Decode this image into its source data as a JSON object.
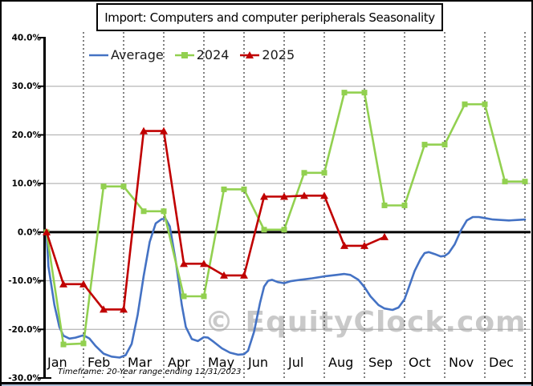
{
  "chart": {
    "title": "Import: Computers and computer peripherals Seasonality"
  },
  "legend": {
    "items": [
      {
        "label": "Average",
        "color": "#4472C4",
        "marker": "none"
      },
      {
        "label": "2024",
        "color": "#92D050",
        "marker": "square"
      },
      {
        "label": "2025",
        "color": "#C00000",
        "marker": "triangle"
      }
    ]
  },
  "watermark": {
    "text": "© EquityClock.com"
  },
  "footnote": {
    "text": "Timeframe: 20-Year range ending 12/31/2023"
  },
  "colors": {
    "average_line": "#4472C4",
    "year2024_line": "#92D050",
    "year2025_line": "#C00000",
    "gridline": "#A6A6A6",
    "axis": "#000000",
    "watermark": "#c9c9c9"
  },
  "chart_data": {
    "type": "line",
    "title": "Import: Computers and computer peripherals Seasonality",
    "xlabel": "",
    "ylabel": "",
    "x_axis": {
      "months": [
        "Jan",
        "Feb",
        "Mar",
        "Apr",
        "May",
        "Jun",
        "Jul",
        "Aug",
        "Sep",
        "Oct",
        "Nov",
        "Dec"
      ],
      "points_per_month": 2
    },
    "y_axis": {
      "range": [
        -30,
        40
      ],
      "tick_labels": [
        "40.0%",
        "30.0%",
        "20.0%",
        "10.0%",
        "0.0%",
        "-10.0%",
        "-20.0%",
        "-30.0%"
      ],
      "tick_values": [
        40,
        30,
        20,
        10,
        0,
        -10,
        -20,
        -30
      ],
      "solid_gridlines": [
        30,
        20,
        10,
        -10,
        -20
      ],
      "zero_line": true,
      "unit": "percent"
    },
    "categories": [
      "Jan 1",
      "Jan 15",
      "Feb 1",
      "Feb 15",
      "Mar 1",
      "Mar 15",
      "Apr 1",
      "Apr 15",
      "May 1",
      "May 15",
      "Jun 1",
      "Jun 15",
      "Jul 1",
      "Jul 15",
      "Aug 1",
      "Aug 15",
      "Sep 1",
      "Sep 15",
      "Oct 1",
      "Oct 15",
      "Nov 1",
      "Nov 15",
      "Dec 1",
      "Dec 15",
      "Dec 31"
    ],
    "series": [
      {
        "name": "Average",
        "color": "#4472C4",
        "marker": "none",
        "style": "smooth",
        "points": [
          [
            0,
            0
          ],
          [
            0.25,
            -7
          ],
          [
            0.55,
            -15
          ],
          [
            0.8,
            -19.5
          ],
          [
            1,
            -21.3
          ],
          [
            1.3,
            -21.9
          ],
          [
            1.6,
            -21.7
          ],
          [
            2,
            -21.2
          ],
          [
            2.3,
            -21.9
          ],
          [
            2.6,
            -23.4
          ],
          [
            3,
            -25
          ],
          [
            3.4,
            -25.6
          ],
          [
            3.8,
            -25.8
          ],
          [
            4.1,
            -25.3
          ],
          [
            4.4,
            -23
          ],
          [
            4.7,
            -17
          ],
          [
            5,
            -9
          ],
          [
            5.3,
            -2
          ],
          [
            5.6,
            1.8
          ],
          [
            5.9,
            2.7
          ],
          [
            6.1,
            2.7
          ],
          [
            6.3,
            1.2
          ],
          [
            6.6,
            -6
          ],
          [
            6.9,
            -15
          ],
          [
            7.1,
            -19.5
          ],
          [
            7.4,
            -22
          ],
          [
            7.7,
            -22.4
          ],
          [
            8,
            -21.6
          ],
          [
            8.2,
            -21.7
          ],
          [
            8.5,
            -22.6
          ],
          [
            8.9,
            -23.9
          ],
          [
            9.3,
            -24.8
          ],
          [
            9.7,
            -25.2
          ],
          [
            10,
            -25.1
          ],
          [
            10.2,
            -24.4
          ],
          [
            10.5,
            -20.5
          ],
          [
            10.8,
            -14.5
          ],
          [
            11,
            -11.2
          ],
          [
            11.2,
            -10
          ],
          [
            11.4,
            -9.8
          ],
          [
            11.7,
            -10.3
          ],
          [
            12,
            -10.5
          ],
          [
            12.3,
            -10.1
          ],
          [
            12.8,
            -9.8
          ],
          [
            13.4,
            -9.5
          ],
          [
            14,
            -9.1
          ],
          [
            14.6,
            -8.8
          ],
          [
            15,
            -8.6
          ],
          [
            15.3,
            -8.8
          ],
          [
            15.7,
            -9.8
          ],
          [
            16,
            -11.3
          ],
          [
            16.3,
            -13.2
          ],
          [
            16.7,
            -15
          ],
          [
            17,
            -15.7
          ],
          [
            17.4,
            -16
          ],
          [
            17.7,
            -15.5
          ],
          [
            18,
            -13.8
          ],
          [
            18.2,
            -11.5
          ],
          [
            18.5,
            -8
          ],
          [
            18.8,
            -5.5
          ],
          [
            19,
            -4.3
          ],
          [
            19.2,
            -4.1
          ],
          [
            19.5,
            -4.5
          ],
          [
            19.8,
            -5
          ],
          [
            20,
            -4.9
          ],
          [
            20.2,
            -4.3
          ],
          [
            20.5,
            -2.5
          ],
          [
            20.8,
            0.3
          ],
          [
            21.1,
            2.4
          ],
          [
            21.4,
            3.1
          ],
          [
            21.7,
            3.1
          ],
          [
            22,
            2.9
          ],
          [
            22.4,
            2.6
          ],
          [
            22.8,
            2.5
          ],
          [
            23.2,
            2.4
          ],
          [
            23.6,
            2.5
          ],
          [
            24,
            2.6
          ]
        ]
      },
      {
        "name": "2024",
        "color": "#92D050",
        "marker": "square",
        "values": [
          0,
          -23.1,
          -22.9,
          9.4,
          9.4,
          4.3,
          4.3,
          -13.2,
          -13.2,
          8.8,
          8.8,
          0.5,
          0.5,
          12.2,
          12.2,
          28.7,
          28.7,
          5.5,
          5.5,
          18,
          18,
          26.3,
          26.3,
          10.4,
          10.4
        ]
      },
      {
        "name": "2025",
        "color": "#C00000",
        "marker": "triangle",
        "values": [
          0,
          -10.7,
          -10.7,
          -15.9,
          -15.9,
          20.8,
          20.8,
          -6.5,
          -6.5,
          -8.9,
          -8.9,
          7.3,
          7.3,
          7.5,
          7.5,
          -2.8,
          -2.8,
          -1
        ]
      }
    ]
  }
}
